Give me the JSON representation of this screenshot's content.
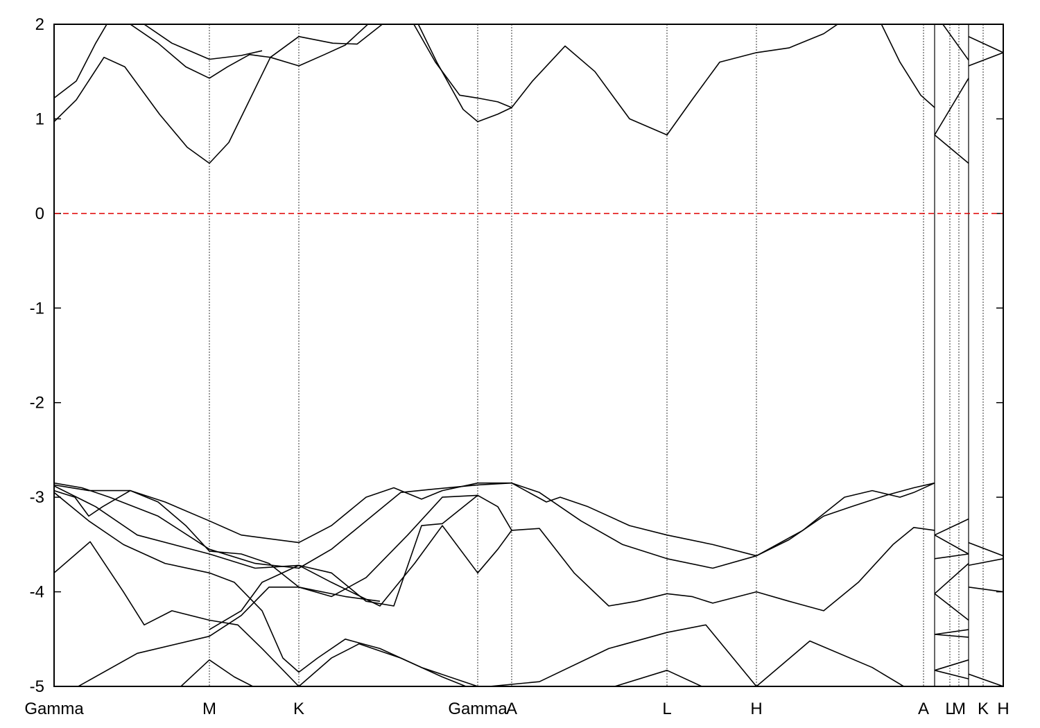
{
  "chart_data": {
    "type": "line",
    "color": "#000000",
    "xlim": [
      0,
      1369
    ],
    "ylim": [
      -5,
      2
    ],
    "yticks": [
      -5,
      -4,
      -3,
      -2,
      -1,
      0,
      1,
      2
    ],
    "xticks": [
      {
        "value": 0,
        "label": "Gamma"
      },
      {
        "value": 224,
        "label": "M"
      },
      {
        "value": 353,
        "label": "K"
      },
      {
        "value": 611,
        "label": "Gamma"
      },
      {
        "value": 660,
        "label": "A"
      },
      {
        "value": 884,
        "label": "L"
      },
      {
        "value": 1013,
        "label": "H"
      },
      {
        "value": 1254,
        "label": "A"
      },
      {
        "value": 1292,
        "label": "L"
      },
      {
        "value": 1305,
        "label": "M"
      },
      {
        "value": 1340,
        "label": "K"
      },
      {
        "value": 1369,
        "label": "H"
      }
    ],
    "grid": true,
    "breaks": [
      1270,
      1319
    ],
    "hlines": [
      {
        "value": 0,
        "color": "#e00000",
        "dashed": true
      }
    ],
    "series": [
      {
        "x": [
          0,
          32,
          72,
          102,
          152,
          192,
          224,
          252,
          282,
          312,
          353,
          402,
          437,
          482,
          null,
          522,
          552,
          590,
          611,
          640,
          660,
          690,
          737,
          780,
          830,
          884,
          920,
          960,
          1013,
          1060,
          1110,
          1140,
          null,
          1190,
          1220,
          1250,
          1270,
          null,
          1270,
          1319
        ],
        "values": [
          0.97,
          1.2,
          1.65,
          1.55,
          1.05,
          0.7,
          0.53,
          0.75,
          1.2,
          1.65,
          1.87,
          1.8,
          1.79,
          2.05,
          null,
          2.05,
          1.6,
          1.1,
          0.97,
          1.05,
          1.12,
          1.4,
          1.77,
          1.5,
          1.0,
          0.83,
          1.2,
          1.6,
          1.7,
          1.75,
          1.9,
          2.05,
          null,
          2.05,
          1.6,
          1.25,
          1.12,
          null,
          0.83,
          1.43
        ]
      },
      {
        "x": [
          0,
          32,
          60,
          80,
          null,
          100,
          150,
          190,
          224,
          250,
          282,
          312,
          353,
          390,
          420,
          460,
          null,
          515,
          550,
          585,
          611,
          640,
          660,
          null,
          1270,
          1319,
          null,
          1319,
          1369
        ],
        "values": [
          1.22,
          1.4,
          1.8,
          2.05,
          null,
          2.05,
          1.8,
          1.55,
          1.43,
          1.55,
          1.68,
          1.65,
          1.56,
          1.68,
          1.78,
          2.05,
          null,
          2.05,
          1.6,
          1.25,
          1.22,
          1.18,
          1.12,
          null,
          0.83,
          0.53,
          null,
          1.56,
          1.7
        ]
      },
      {
        "x": [
          120,
          170,
          224,
          270,
          300,
          null,
          1277,
          1319,
          null,
          1319,
          1369
        ],
        "values": [
          2.05,
          1.8,
          1.63,
          1.67,
          1.72,
          null,
          2.05,
          1.62,
          null,
          1.87,
          1.7
        ]
      },
      {
        "x": [
          0,
          40,
          80,
          150,
          224,
          290,
          353,
          400,
          450,
          500,
          540,
          611,
          660,
          700,
          760,
          820,
          884,
          950,
          1013,
          1060,
          1110,
          1150,
          1200,
          1240,
          1270
        ],
        "values": [
          -2.85,
          -2.9,
          -3.0,
          -3.2,
          -3.55,
          -3.7,
          -3.75,
          -3.55,
          -3.25,
          -2.95,
          -2.92,
          -2.87,
          -2.85,
          -2.95,
          -3.25,
          -3.5,
          -3.65,
          -3.75,
          -3.62,
          -3.45,
          -3.2,
          -3.1,
          -2.98,
          -2.9,
          -2.85
        ]
      },
      {
        "x": [
          0,
          50,
          110,
          160,
          224,
          270,
          353,
          400,
          450,
          490,
          530,
          560,
          611,
          660,
          710,
          730,
          770,
          830,
          884,
          950,
          1013,
          1080,
          1140,
          1180,
          1220,
          1240,
          1270
        ],
        "values": [
          -2.87,
          -2.93,
          -2.93,
          -3.05,
          -3.25,
          -3.4,
          -3.48,
          -3.3,
          -3.0,
          -2.9,
          -3.02,
          -2.93,
          -2.85,
          -2.85,
          -3.05,
          -3.0,
          -3.1,
          -3.3,
          -3.4,
          -3.5,
          -3.62,
          -3.35,
          -3.0,
          -2.93,
          -3.0,
          -2.95,
          -2.85
        ]
      },
      {
        "x": [
          0,
          30,
          50,
          70,
          110,
          150,
          190,
          224,
          270,
          310,
          353,
          400,
          450,
          510,
          560,
          611,
          640,
          660,
          700,
          750,
          800,
          840,
          884,
          920,
          950,
          1013,
          1060,
          1110,
          1160,
          1210,
          1240,
          1270
        ],
        "values": [
          -2.93,
          -3.0,
          -3.2,
          -3.1,
          -2.93,
          -3.05,
          -3.3,
          -3.57,
          -3.6,
          -3.7,
          -3.95,
          -4.05,
          -3.85,
          -3.4,
          -3.0,
          -2.98,
          -3.1,
          -3.35,
          -3.33,
          -3.8,
          -4.15,
          -4.1,
          -4.02,
          -4.05,
          -4.12,
          -4.0,
          -4.1,
          -4.2,
          -3.9,
          -3.5,
          -3.32,
          -3.35
        ]
      },
      {
        "x": [
          0,
          50,
          100,
          160,
          224,
          260,
          300,
          330,
          353,
          380,
          420,
          470,
          530,
          611
        ],
        "values": [
          -2.95,
          -3.25,
          -3.5,
          -3.7,
          -3.8,
          -3.9,
          -4.2,
          -4.7,
          -4.85,
          -4.7,
          -4.5,
          -4.6,
          -4.8,
          -5.0
        ]
      },
      {
        "x": [
          0,
          52,
          100,
          130,
          170,
          224,
          265,
          300,
          353,
          400,
          440,
          500,
          560,
          611
        ],
        "values": [
          -3.8,
          -3.47,
          -4.0,
          -4.35,
          -4.2,
          -4.3,
          -4.35,
          -4.6,
          -5.0,
          -4.7,
          -4.55,
          -4.7,
          -4.9,
          -5.05
        ]
      },
      {
        "x": [
          0,
          60,
          120,
          224,
          290,
          353,
          400,
          470,
          520,
          560,
          611,
          640,
          660
        ],
        "values": [
          -2.88,
          -3.1,
          -3.4,
          -3.6,
          -3.75,
          -3.72,
          -3.9,
          -4.15,
          -3.7,
          -3.3,
          -3.8,
          -3.55,
          -3.35
        ]
      },
      {
        "x": [
          224,
          270,
          300,
          353,
          400,
          450,
          490,
          530,
          560,
          611
        ],
        "values": [
          -4.4,
          -4.2,
          -3.9,
          -3.72,
          -3.8,
          -4.1,
          -4.15,
          -3.3,
          -3.28,
          -2.98
        ]
      },
      {
        "x": [
          30,
          120,
          224,
          270,
          310,
          353,
          420,
          470
        ],
        "values": [
          -5.02,
          -4.65,
          -4.47,
          -4.25,
          -3.95,
          -3.95,
          -4.05,
          -4.1
        ]
      },
      {
        "x": [
          600,
          700,
          800,
          884,
          940,
          1013,
          1090,
          1180,
          1230
        ],
        "values": [
          -5.02,
          -4.95,
          -4.6,
          -4.43,
          -4.35,
          -5.0,
          -4.52,
          -4.8,
          -5.02
        ]
      },
      {
        "x": [
          180,
          224,
          260,
          300,
          null,
          800,
          884,
          940
        ],
        "values": [
          -5.02,
          -4.72,
          -4.9,
          -5.05,
          null,
          -5.02,
          -4.83,
          -5.02
        ]
      },
      {
        "x": [
          1270,
          1319,
          null,
          1270,
          1319,
          null,
          1270,
          1319,
          null,
          1270,
          1319,
          null,
          1270,
          1319,
          null,
          1270,
          1319,
          null,
          1270,
          1319,
          null,
          1270,
          1319,
          null,
          1270,
          1319
        ],
        "values": [
          -3.4,
          -3.23,
          null,
          -3.4,
          -3.6,
          null,
          -3.65,
          -3.6,
          null,
          -4.02,
          -3.7,
          null,
          -4.02,
          -4.3,
          null,
          -4.45,
          -4.4,
          null,
          -4.45,
          -4.48,
          null,
          -4.83,
          -4.72,
          null,
          -4.83,
          -4.92
        ]
      },
      {
        "x": [
          1319,
          1369,
          null,
          1319,
          1369,
          null,
          1319,
          1369,
          null,
          1319,
          1369
        ],
        "values": [
          -3.48,
          -3.62,
          null,
          -3.72,
          -3.65,
          null,
          -3.95,
          -4.0,
          null,
          -4.87,
          -5.0
        ]
      }
    ]
  }
}
